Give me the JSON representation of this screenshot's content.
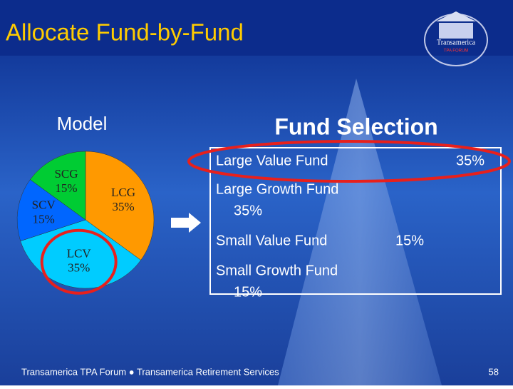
{
  "title": "Allocate Fund-by-Fund",
  "logo": {
    "name": "Transamerica",
    "tagline": "TPA FORUM"
  },
  "chart_data": {
    "type": "pie",
    "title": "Model",
    "categories": [
      "LCG",
      "LCV",
      "SCV",
      "SCG"
    ],
    "values": [
      35,
      35,
      15,
      15
    ],
    "value_labels": [
      "35%",
      "35%",
      "15%",
      "15%"
    ],
    "colors": [
      "#ff9900",
      "#00ccff",
      "#0066ff",
      "#00cc33"
    ],
    "highlight": "LCV"
  },
  "fund_selection": {
    "title": "Fund Selection",
    "funds": [
      {
        "name": "Large Value Fund",
        "pct": "35%"
      },
      {
        "name": "Large Growth Fund",
        "pct": "35%"
      },
      {
        "name": "Small Value Fund",
        "pct": "15%"
      },
      {
        "name": "Small Growth Fund",
        "pct": "15%"
      }
    ]
  },
  "footer": "Transamerica TPA Forum ● Transamerica Retirement Services",
  "page_number": "58"
}
